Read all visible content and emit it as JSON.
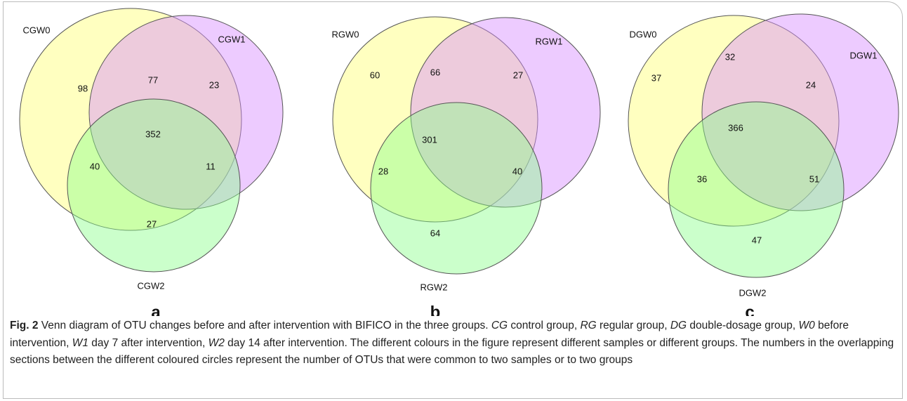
{
  "panels": [
    {
      "label": "a",
      "sets": [
        "CGW0",
        "CGW1",
        "CGW2"
      ],
      "regions": [
        98,
        77,
        23,
        352,
        40,
        11,
        27
      ]
    },
    {
      "label": "b",
      "sets": [
        "RGW0",
        "RGW1",
        "RGW2"
      ],
      "regions": [
        60,
        66,
        27,
        301,
        28,
        40,
        64
      ]
    },
    {
      "label": "c",
      "sets": [
        "DGW0",
        "DGW1",
        "DGW2"
      ],
      "regions": [
        37,
        32,
        24,
        366,
        36,
        51,
        47
      ]
    }
  ],
  "caption": {
    "label": "Fig. 2",
    "segments": [
      {
        "text": " Venn diagram of OTU changes before and after intervention with BIFICO in the three groups. "
      },
      {
        "text": "CG",
        "italic": true
      },
      {
        "text": " control group, "
      },
      {
        "text": "RG",
        "italic": true
      },
      {
        "text": " regular group, "
      },
      {
        "text": "DG",
        "italic": true
      },
      {
        "text": " double-dosage group, "
      },
      {
        "text": "W0",
        "italic": true
      },
      {
        "text": " before intervention, "
      },
      {
        "text": "W1",
        "italic": true
      },
      {
        "text": " day 7 after intervention, "
      },
      {
        "text": "W2",
        "italic": true
      },
      {
        "text": " day 14 after intervention. The different colours in the figure represent different samples or different groups. The numbers in the overlapping sections between the different coloured circles represent the number of OTUs that were common to two samples or to two groups"
      }
    ]
  }
}
